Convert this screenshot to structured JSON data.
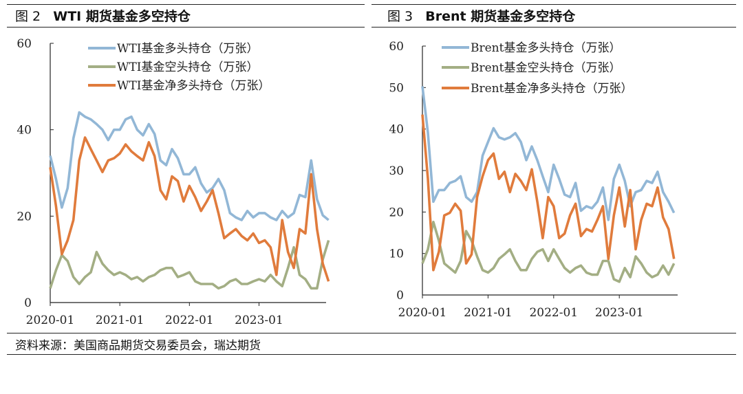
{
  "source": "资料来源：美国商品期货交易委员会，瑞达期货",
  "colors": {
    "long": "#92b7d6",
    "short": "#a3ae84",
    "net": "#e07b3c"
  },
  "chart_data": [
    {
      "type": "line",
      "fig_no": "图 2",
      "title": "WTI 期货基金多空持仓",
      "ylim": [
        0,
        60
      ],
      "yticks": [
        "0",
        "20",
        "40",
        "60"
      ],
      "xticks": [
        "2020-01",
        "2021-01",
        "2022-01",
        "2023-01"
      ],
      "x_unit": "months since 2020-01",
      "series": [
        {
          "name": "WTI基金多头持仓（万张）",
          "key": "long",
          "values": [
            34,
            28.6,
            22,
            26.5,
            38,
            44,
            43,
            42.4,
            41.3,
            40,
            37.6,
            40,
            40,
            42.4,
            43,
            40,
            38.7,
            41.3,
            39,
            32.9,
            31.8,
            35.5,
            33.4,
            29.7,
            29.7,
            31.3,
            27.6,
            25.5,
            26.5,
            28.6,
            26,
            20.7,
            19.7,
            19.1,
            21.2,
            19.7,
            20.7,
            20.7,
            19.7,
            19.1,
            21.2,
            19.7,
            20.7,
            24.9,
            24.4,
            32.9,
            23.9,
            20.2,
            19.1
          ]
        },
        {
          "name": "WTI基金空头持仓（万张）",
          "key": "short",
          "values": [
            3.3,
            7.5,
            11,
            9.6,
            5.9,
            4.3,
            5.9,
            7,
            11.7,
            9,
            7.5,
            6.4,
            7,
            6.4,
            5.4,
            5.9,
            4.9,
            5.9,
            6.4,
            7.5,
            8,
            8,
            5.9,
            6.4,
            7,
            4.9,
            4.3,
            4.3,
            4.3,
            3.3,
            3.8,
            4.9,
            5.4,
            4.3,
            4.3,
            4.9,
            5.4,
            4.9,
            6.4,
            4.9,
            3.8,
            8,
            12.8,
            6.4,
            5.4,
            3.3,
            3.3,
            10,
            14.4
          ]
        },
        {
          "name": "WTI基金净多头持仓（万张）",
          "key": "net",
          "values": [
            31.3,
            22.3,
            11.2,
            14.4,
            19.1,
            32.9,
            38.2,
            35.5,
            32.9,
            30.2,
            32.9,
            33.4,
            34.5,
            36.6,
            35,
            33.9,
            32.9,
            37.1,
            33.9,
            26,
            23.9,
            29.2,
            28.1,
            23.4,
            27,
            24.4,
            21.2,
            23.4,
            26,
            20.7,
            14.9,
            16,
            17,
            15.4,
            14.4,
            16,
            13.8,
            14.4,
            12.8,
            6.4,
            19.1,
            11.7,
            8,
            17,
            16,
            29.7,
            17,
            9,
            4.9
          ]
        }
      ]
    },
    {
      "type": "line",
      "fig_no": "图 3",
      "title": "Brent 期货基金多空持仓",
      "ylim": [
        0,
        60
      ],
      "yticks": [
        "0",
        "10",
        "20",
        "30",
        "40",
        "50",
        "60"
      ],
      "xticks": [
        "2020-01",
        "2021-01",
        "2022-01",
        "2023-01"
      ],
      "x_unit": "months since 2020-01",
      "series": [
        {
          "name": "Brent基金多头持仓（万张）",
          "key": "long",
          "values": [
            50.3,
            39.1,
            22.5,
            25.3,
            25.3,
            27,
            27.5,
            28.6,
            23.6,
            22.5,
            24.8,
            33.6,
            36.9,
            40.2,
            38,
            37.5,
            38,
            39,
            36.9,
            32.5,
            35.8,
            32.5,
            28.6,
            24.8,
            31.4,
            28,
            24.2,
            23.6,
            27,
            20.3,
            21.4,
            20.9,
            22.5,
            25.9,
            18.1,
            28,
            31.4,
            27.5,
            21.4,
            24.8,
            25.3,
            27.5,
            27,
            29.7,
            24.8,
            22.5,
            19.8
          ]
        },
        {
          "name": "Brent基金空头持仓（万张）",
          "key": "short",
          "values": [
            7.6,
            11,
            17.6,
            13.1,
            7.6,
            6.5,
            5.4,
            8.2,
            15.4,
            13.1,
            9.3,
            6,
            5.4,
            6.5,
            8.7,
            9.8,
            11,
            8.2,
            6,
            6,
            8.7,
            10.4,
            11,
            8.2,
            11,
            8.7,
            6.5,
            5.4,
            6.5,
            7.1,
            5.4,
            4.9,
            4.9,
            8.2,
            8.2,
            3.8,
            3.2,
            6.5,
            4.3,
            9.3,
            7.6,
            5.4,
            4.3,
            4.9,
            7.1,
            4.9,
            7.6
          ]
        },
        {
          "name": "Brent基金净多头持仓（万张）",
          "key": "net",
          "values": [
            43.5,
            28,
            6,
            10.4,
            19.2,
            19.8,
            22,
            20.3,
            7.6,
            9.8,
            23.6,
            28.6,
            32.5,
            34.1,
            28,
            29.7,
            24.8,
            29.2,
            27.5,
            25.3,
            30.3,
            22.5,
            13.7,
            23.6,
            21.4,
            13.7,
            14.8,
            19.2,
            22,
            14.2,
            15.9,
            15.3,
            18.1,
            21.4,
            8.7,
            19.2,
            25.9,
            16.5,
            25.3,
            11,
            18.1,
            22,
            21.4,
            25.9,
            18.7,
            15.9,
            8.7
          ]
        }
      ]
    }
  ]
}
